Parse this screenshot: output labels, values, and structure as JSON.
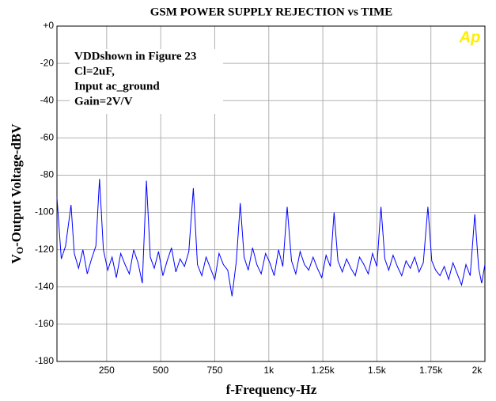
{
  "chart_data": {
    "type": "line",
    "title": "GSM POWER SUPPLY REJECTION vs TIME",
    "xlabel": "f-Frequency-Hz",
    "ylabel": [
      "V",
      "O",
      "-Output Voltage-dBV"
    ],
    "annotations": [
      "VDDshown in Figure 23",
      "Cl=2uF,",
      "Input ac_ground",
      "Gain=2V/V"
    ],
    "logo": "Ap",
    "grid": true,
    "xlim": [
      20,
      2000
    ],
    "ylim": [
      -180,
      0
    ],
    "xticks": [
      250,
      500,
      750,
      {
        "value": 1000,
        "label": "1k"
      },
      {
        "value": 1250,
        "label": "1.25k"
      },
      {
        "value": 1500,
        "label": "1.5k"
      },
      {
        "value": 1750,
        "label": "1.75k"
      },
      {
        "value": 2000,
        "label": "2k"
      }
    ],
    "yticks": [
      {
        "value": 0,
        "label": "+0"
      },
      -20,
      -40,
      -60,
      -80,
      -100,
      -120,
      -140,
      -160,
      -180
    ],
    "x": [
      20,
      40,
      60,
      85,
      100,
      120,
      140,
      160,
      180,
      200,
      217,
      235,
      255,
      275,
      295,
      315,
      335,
      355,
      375,
      395,
      415,
      434,
      452,
      470,
      490,
      510,
      530,
      550,
      570,
      590,
      610,
      630,
      651,
      670,
      690,
      710,
      730,
      750,
      770,
      790,
      810,
      830,
      850,
      868,
      886,
      905,
      925,
      945,
      965,
      985,
      1005,
      1025,
      1045,
      1065,
      1085,
      1105,
      1125,
      1145,
      1165,
      1185,
      1205,
      1225,
      1245,
      1265,
      1285,
      1302,
      1320,
      1340,
      1360,
      1380,
      1400,
      1420,
      1440,
      1460,
      1480,
      1500,
      1519,
      1537,
      1555,
      1575,
      1595,
      1615,
      1635,
      1655,
      1675,
      1695,
      1715,
      1736,
      1754,
      1772,
      1792,
      1812,
      1832,
      1852,
      1872,
      1892,
      1912,
      1932,
      1953,
      1971,
      1985,
      2000
    ],
    "series": [
      {
        "color": "#0000ff",
        "values": [
          -92,
          -125,
          -118,
          -96,
          -122,
          -130,
          -120,
          -133,
          -125,
          -118,
          -82,
          -120,
          -131,
          -124,
          -135,
          -122,
          -128,
          -133,
          -120,
          -127,
          -138,
          -83,
          -124,
          -130,
          -121,
          -134,
          -126,
          -119,
          -132,
          -125,
          -129,
          -121,
          -87,
          -128,
          -134,
          -124,
          -130,
          -136,
          -122,
          -128,
          -131,
          -145,
          -126,
          -95,
          -124,
          -131,
          -119,
          -128,
          -133,
          -122,
          -127,
          -134,
          -120,
          -129,
          -97,
          -126,
          -133,
          -121,
          -128,
          -131,
          -124,
          -130,
          -135,
          -123,
          -129,
          -100,
          -126,
          -132,
          -125,
          -130,
          -134,
          -124,
          -128,
          -133,
          -122,
          -129,
          -97,
          -125,
          -131,
          -123,
          -129,
          -134,
          -126,
          -130,
          -124,
          -132,
          -127,
          -97,
          -126,
          -131,
          -134,
          -129,
          -136,
          -127,
          -133,
          -139,
          -128,
          -134,
          -101,
          -130,
          -138,
          -128
        ]
      }
    ]
  }
}
